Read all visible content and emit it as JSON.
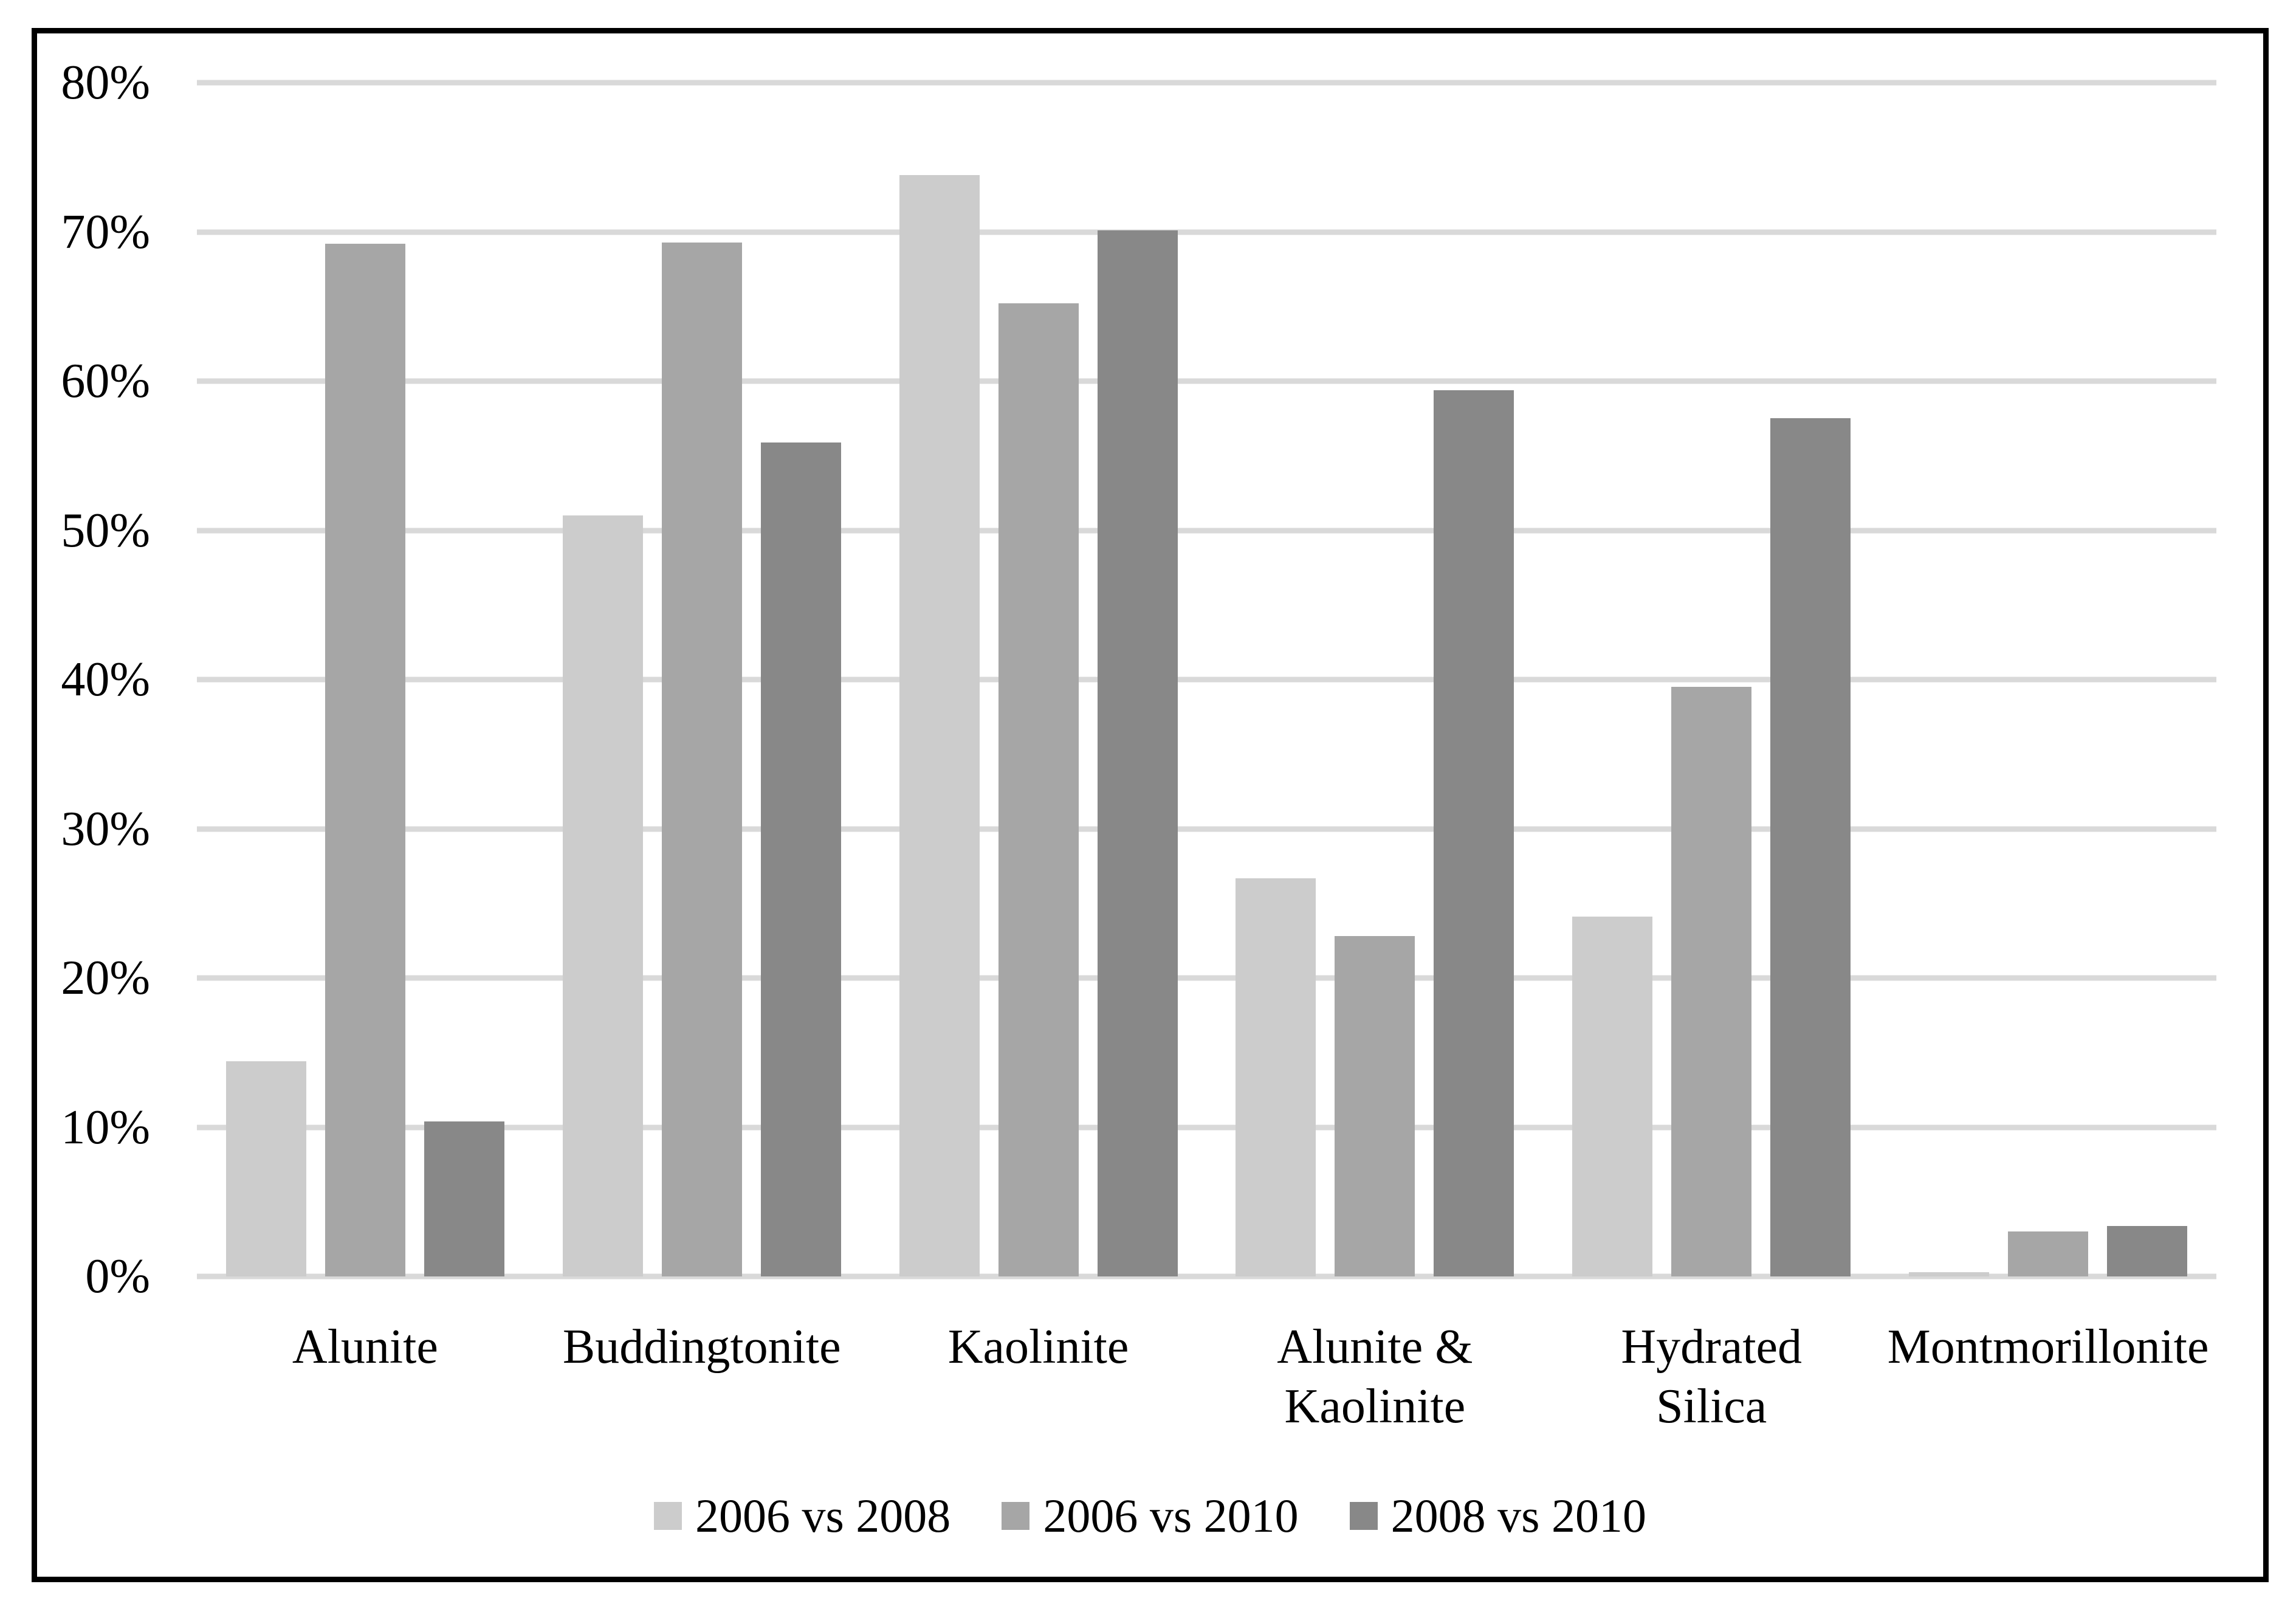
{
  "chart_data": {
    "type": "bar",
    "title": "",
    "xlabel": "",
    "ylabel": "",
    "categories": [
      "Alunite",
      "Buddingtonite",
      "Kaolinite",
      "Alunite &\nKaolinite",
      "Hydrated\nSilica",
      "Montmorillonite"
    ],
    "series": [
      {
        "name": "2006 vs 2008",
        "color": "#cccccc",
        "values": [
          14.4,
          51.0,
          73.8,
          26.7,
          24.1,
          0.3
        ]
      },
      {
        "name": "2006 vs 2010",
        "color": "#a6a6a6",
        "values": [
          69.2,
          69.3,
          65.2,
          22.8,
          39.5,
          3.0
        ]
      },
      {
        "name": "2008 vs 2010",
        "color": "#888888",
        "values": [
          10.4,
          55.9,
          70.1,
          59.4,
          57.5,
          3.4
        ]
      }
    ],
    "ylim": [
      0,
      80
    ],
    "ytick_labels": [
      "80%",
      "70%",
      "60%",
      "50%",
      "40%",
      "30%",
      "20%",
      "10%",
      "0%"
    ],
    "grid": true,
    "legend_position": "bottom-center",
    "styles": {
      "background_color": "#ffffff",
      "frame_border_color": "#000000",
      "gridline_color": "#d9d9d9",
      "axis_line_color": "#d9d9d9",
      "text_color": "#000000"
    }
  }
}
